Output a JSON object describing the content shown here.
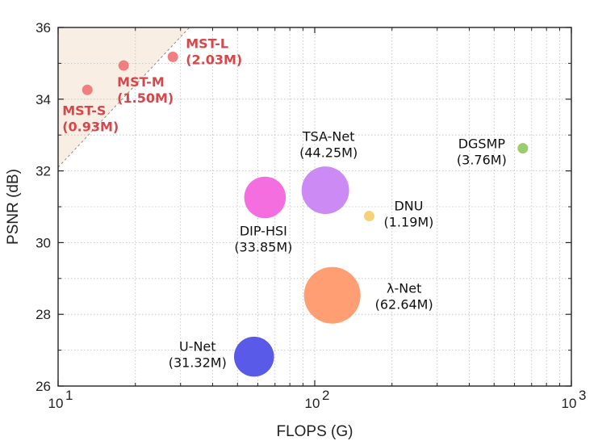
{
  "chart_data": {
    "type": "scatter",
    "xlabel": "FLOPS (G)",
    "ylabel": "PSNR (dB)",
    "xscale": "log",
    "xlim": [
      10,
      1000
    ],
    "ylim": [
      26,
      36
    ],
    "xticks": [
      {
        "value": 10,
        "base": "10",
        "exp": "1"
      },
      {
        "value": 100,
        "base": "10",
        "exp": "2"
      },
      {
        "value": 1000,
        "base": "10",
        "exp": "3"
      }
    ],
    "yticks": [
      "26",
      "28",
      "30",
      "32",
      "34",
      "36"
    ],
    "grid": true,
    "highlight_region": {
      "from": [
        10,
        32.1
      ],
      "to": [
        32.5,
        36
      ],
      "color": "#f9eee3"
    },
    "highlight_color": "#d6474b",
    "points": [
      {
        "name": "MST-L",
        "params": "(2.03M)",
        "flops": 28,
        "psnr": 35.18,
        "params_m": 2.03,
        "color": "#f08080",
        "highlight": true
      },
      {
        "name": "MST-M",
        "params": "(1.50M)",
        "flops": 18,
        "psnr": 34.94,
        "params_m": 1.5,
        "color": "#f08080",
        "highlight": true
      },
      {
        "name": "MST-S",
        "params": "(0.93M)",
        "flops": 13,
        "psnr": 34.26,
        "params_m": 0.93,
        "color": "#f08080",
        "highlight": true
      },
      {
        "name": "TSA-Net",
        "params": "(44.25M)",
        "flops": 110,
        "psnr": 31.46,
        "params_m": 44.25,
        "color": "#cc8af5",
        "highlight": false
      },
      {
        "name": "DGSMP",
        "params": "(3.76M)",
        "flops": 647,
        "psnr": 32.63,
        "params_m": 3.76,
        "color": "#9acd6e",
        "highlight": false
      },
      {
        "name": "DIP-HSI",
        "params": "(33.85M)",
        "flops": 64,
        "psnr": 31.26,
        "params_m": 33.85,
        "color": "#f56ee0",
        "highlight": false
      },
      {
        "name": "DNU",
        "params": "(1.19M)",
        "flops": 163,
        "psnr": 30.74,
        "params_m": 1.19,
        "color": "#f5d27a",
        "highlight": false
      },
      {
        "name": "λ-Net",
        "params": "(62.64M)",
        "flops": 117,
        "psnr": 28.53,
        "params_m": 62.64,
        "color": "#ff9e73",
        "highlight": false
      },
      {
        "name": "U-Net",
        "params": "(31.32M)",
        "flops": 58,
        "psnr": 26.82,
        "params_m": 31.32,
        "color": "#5a5ae8",
        "highlight": false
      }
    ]
  }
}
